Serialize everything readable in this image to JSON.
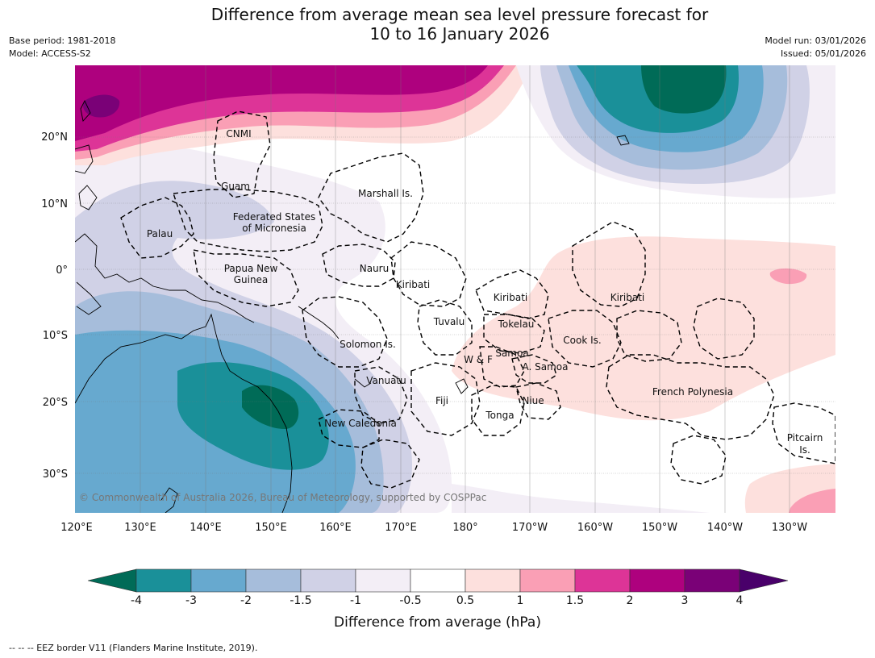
{
  "title": {
    "line1": "Difference from average mean sea level pressure forecast for",
    "line2": "10 to 16 January 2026"
  },
  "meta": {
    "base_period": "Base period: 1981-2018",
    "model": "Model: ACCESS-S2",
    "model_run": "Model run: 03/01/2026",
    "issued": "Issued: 05/01/2026"
  },
  "axes": {
    "x_labels": [
      "120°E",
      "130°E",
      "140°E",
      "150°E",
      "160°E",
      "170°E",
      "180°",
      "170°W",
      "160°W",
      "150°W",
      "140°W",
      "130°W"
    ],
    "y_labels": [
      "20°N",
      "10°N",
      "0°",
      "10°S",
      "20°S",
      "30°S"
    ]
  },
  "regions": {
    "cnmi": "CNMI",
    "guam": "Guam",
    "marshall": "Marshall Is.",
    "fsm1": "Federated States",
    "fsm2": "of Micronesia",
    "palau": "Palau",
    "png1": "Papua New",
    "png2": "Guinea",
    "nauru": "Nauru",
    "kiribati_w": "Kiribati",
    "kiribati_c": "Kiribati",
    "kiribati_e": "Kiribati",
    "tuvalu": "Tuvalu",
    "tokelau": "Tokelau",
    "solomon": "Solomon Is.",
    "cook": "Cook Is.",
    "wf": "W & F",
    "samoa": "Samoa",
    "asamoa": "A. Samoa",
    "vanuatu": "Vanuatu",
    "fiji": "Fiji",
    "niue": "Niue",
    "french_poly": "French Polynesia",
    "new_caledonia": "New Caledonia",
    "tonga": "Tonga",
    "pitcairn1": "Pitcairn",
    "pitcairn2": "Is."
  },
  "copyright": "© Commonwealth of Australia 2026, Bureau of Meteorology, supported by COSPPac",
  "colorbar": {
    "title": "Difference from average (hPa)",
    "ticks": [
      "-4",
      "-3",
      "-2",
      "-1.5",
      "-1",
      "-0.5",
      "0.5",
      "1",
      "1.5",
      "2",
      "3",
      "4"
    ],
    "colors": {
      "below_min": "#006b57",
      "n4_n3": "#1a9099",
      "n3_n2": "#67a9cf",
      "n2_n15": "#a6bddb",
      "n15_n1": "#d0d1e6",
      "n1_n05": "#f3eef6",
      "n05_05": "#ffffff",
      "p05_1": "#fde0dd",
      "p1_15": "#fa9fb5",
      "p15_2": "#dd3497",
      "p2_3": "#ae017e",
      "p3_4": "#7a0177",
      "above_max": "#49006a"
    }
  },
  "legend_note": "--  --  -- EEZ border V11 (Flanders Marine Institute, 2019)."
}
